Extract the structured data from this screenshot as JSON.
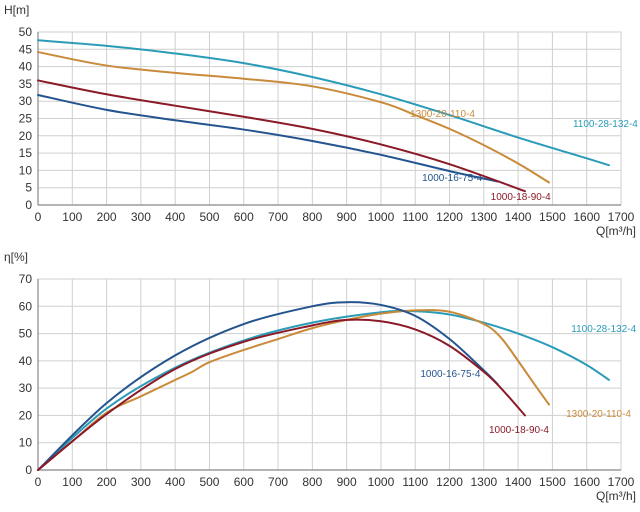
{
  "chart_data": [
    {
      "type": "line",
      "ylabel": "H[m]",
      "xlabel": "Q[m³/h]",
      "xlim": [
        0,
        1700
      ],
      "ylim": [
        0,
        50
      ],
      "x_ticks": [
        0,
        100,
        200,
        300,
        400,
        500,
        600,
        700,
        800,
        900,
        1000,
        1100,
        1200,
        1300,
        1400,
        1500,
        1600,
        1700
      ],
      "y_ticks": [
        0,
        5,
        10,
        15,
        20,
        25,
        30,
        35,
        40,
        45,
        50
      ],
      "grid": true,
      "series": [
        {
          "name": "1100-28-132-4",
          "color": "#2a9cb8",
          "label_anchor": [
            1560,
            22.5
          ],
          "x": [
            0,
            200,
            400,
            600,
            800,
            1000,
            1200,
            1400,
            1600,
            1665
          ],
          "y": [
            47.6,
            46.0,
            43.8,
            41.0,
            37.0,
            32.0,
            26.0,
            19.5,
            13.5,
            11.5
          ]
        },
        {
          "name": "1300-20-110-4",
          "color": "#c98a3a",
          "label_anchor": [
            1085,
            25.5
          ],
          "x": [
            0,
            200,
            400,
            600,
            800,
            1000,
            1100,
            1200,
            1300,
            1400,
            1450,
            1490
          ],
          "y": [
            44.2,
            40.3,
            38.2,
            36.5,
            34.3,
            29.7,
            26.0,
            22.0,
            17.3,
            12.0,
            9.0,
            6.5
          ]
        },
        {
          "name": "1000-16-75-4",
          "color": "#24548f",
          "label_anchor": [
            1120,
            7.0
          ],
          "x": [
            0,
            200,
            400,
            600,
            800,
            1000,
            1200,
            1340
          ],
          "y": [
            31.8,
            27.5,
            24.5,
            21.8,
            18.5,
            14.5,
            9.8,
            6.8
          ]
        },
        {
          "name": "1000-18-90-4",
          "color": "#8b1a28",
          "label_anchor": [
            1320,
            1.5
          ],
          "x": [
            0,
            200,
            400,
            600,
            800,
            1000,
            1200,
            1420
          ],
          "y": [
            36.0,
            32.0,
            28.7,
            25.5,
            22.0,
            17.5,
            11.8,
            4.0
          ]
        }
      ]
    },
    {
      "type": "line",
      "ylabel": "η[%]",
      "xlabel": "Q[m³/h]",
      "xlim": [
        0,
        1700
      ],
      "ylim": [
        0,
        70
      ],
      "x_ticks": [
        0,
        100,
        200,
        300,
        400,
        500,
        600,
        700,
        800,
        900,
        1000,
        1100,
        1200,
        1300,
        1400,
        1500,
        1600,
        1700
      ],
      "y_ticks": [
        0,
        10,
        20,
        30,
        40,
        50,
        60,
        70
      ],
      "grid": true,
      "series": [
        {
          "name": "1100-28-132-4",
          "color": "#2a9cb8",
          "label_anchor": [
            1555,
            50.5
          ],
          "x": [
            0,
            200,
            400,
            600,
            800,
            1000,
            1100,
            1200,
            1300,
            1400,
            1500,
            1600,
            1665
          ],
          "y": [
            0,
            22.5,
            37.5,
            47.5,
            54.0,
            57.8,
            58.2,
            57.0,
            54.0,
            50.0,
            45.0,
            38.5,
            33.0
          ]
        },
        {
          "name": "1300-20-110-4",
          "color": "#c98a3a",
          "label_anchor": [
            1540,
            19.5
          ],
          "x": [
            0,
            100,
            200,
            300,
            400,
            450,
            500,
            600,
            700,
            800,
            900,
            1000,
            1100,
            1200,
            1300,
            1350,
            1400,
            1450,
            1490
          ],
          "y": [
            0,
            10.5,
            21.0,
            27.0,
            33.0,
            36.0,
            39.5,
            44.0,
            48.0,
            52.0,
            55.0,
            57.3,
            58.5,
            58.0,
            53.5,
            48.5,
            40.0,
            31.0,
            24.0
          ]
        },
        {
          "name": "1000-16-75-4",
          "color": "#24548f",
          "label_anchor": [
            1115,
            34.0
          ],
          "x": [
            0,
            200,
            400,
            600,
            800,
            900,
            1000,
            1100,
            1200,
            1300,
            1340
          ],
          "y": [
            0,
            24.5,
            42.0,
            53.5,
            60.0,
            61.5,
            60.5,
            56.5,
            48.0,
            36.5,
            31.5
          ]
        },
        {
          "name": "1000-18-90-4",
          "color": "#8b1a28",
          "label_anchor": [
            1315,
            13.5
          ],
          "x": [
            0,
            200,
            400,
            600,
            800,
            900,
            1000,
            1100,
            1200,
            1300,
            1350,
            1420
          ],
          "y": [
            0,
            20.5,
            37.0,
            47.0,
            53.0,
            55.0,
            54.5,
            51.5,
            45.5,
            36.0,
            30.0,
            20.0
          ]
        }
      ]
    }
  ]
}
